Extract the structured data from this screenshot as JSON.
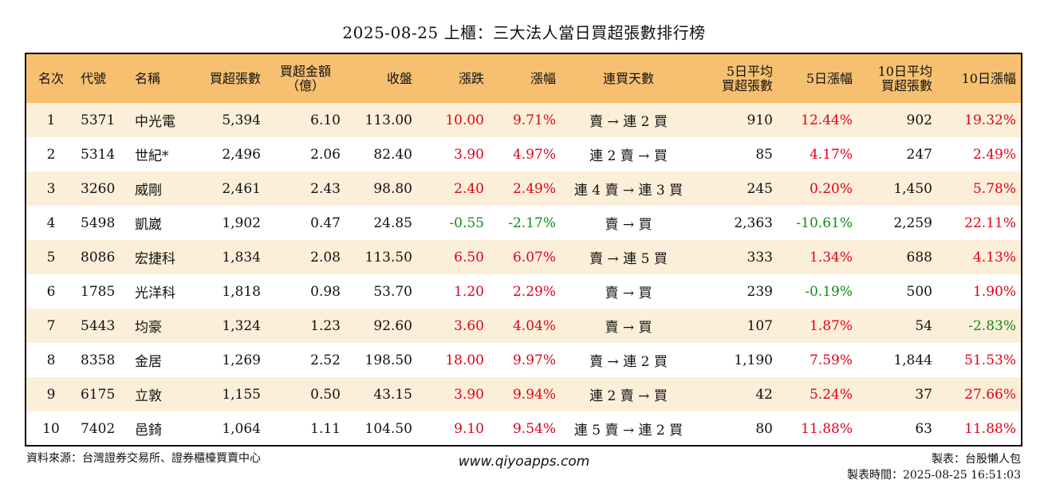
{
  "title": "2025-08-25 上櫃：三大法人當日買超張數排行榜",
  "columns": {
    "rank": "名次",
    "code": "代號",
    "name": "名稱",
    "buy_lots": "買超張數",
    "amount_l1": "買超金額",
    "amount_l2": "（億）",
    "close": "收盤",
    "change": "漲跌",
    "pct": "漲幅",
    "streak": "連買天數",
    "avg5_l1": "5日平均",
    "avg5_l2": "買超張數",
    "pct5": "5日漲幅",
    "avg10_l1": "10日平均",
    "avg10_l2": "買超張數",
    "pct10": "10日漲幅"
  },
  "rows": [
    {
      "rank": "1",
      "code": "5371",
      "name": "中光電",
      "buy_lots": "5,394",
      "amount": "6.10",
      "close": "113.00",
      "change": "10.00",
      "pct": "9.71%",
      "streak": "賣 → 連 2 買",
      "avg5": "910",
      "pct5": "12.44%",
      "avg10": "902",
      "pct10": "19.32%"
    },
    {
      "rank": "2",
      "code": "5314",
      "name": "世紀*",
      "buy_lots": "2,496",
      "amount": "2.06",
      "close": "82.40",
      "change": "3.90",
      "pct": "4.97%",
      "streak": "連 2 賣 → 買",
      "avg5": "85",
      "pct5": "4.17%",
      "avg10": "247",
      "pct10": "2.49%"
    },
    {
      "rank": "3",
      "code": "3260",
      "name": "威剛",
      "buy_lots": "2,461",
      "amount": "2.43",
      "close": "98.80",
      "change": "2.40",
      "pct": "2.49%",
      "streak": "連 4 賣 → 連 3 買",
      "avg5": "245",
      "pct5": "0.20%",
      "avg10": "1,450",
      "pct10": "5.78%"
    },
    {
      "rank": "4",
      "code": "5498",
      "name": "凱崴",
      "buy_lots": "1,902",
      "amount": "0.47",
      "close": "24.85",
      "change": "-0.55",
      "pct": "-2.17%",
      "streak": "賣 → 買",
      "avg5": "2,363",
      "pct5": "-10.61%",
      "avg10": "2,259",
      "pct10": "22.11%"
    },
    {
      "rank": "5",
      "code": "8086",
      "name": "宏捷科",
      "buy_lots": "1,834",
      "amount": "2.08",
      "close": "113.50",
      "change": "6.50",
      "pct": "6.07%",
      "streak": "賣 → 連 5 買",
      "avg5": "333",
      "pct5": "1.34%",
      "avg10": "688",
      "pct10": "4.13%"
    },
    {
      "rank": "6",
      "code": "1785",
      "name": "光洋科",
      "buy_lots": "1,818",
      "amount": "0.98",
      "close": "53.70",
      "change": "1.20",
      "pct": "2.29%",
      "streak": "賣 → 買",
      "avg5": "239",
      "pct5": "-0.19%",
      "avg10": "500",
      "pct10": "1.90%"
    },
    {
      "rank": "7",
      "code": "5443",
      "name": "均豪",
      "buy_lots": "1,324",
      "amount": "1.23",
      "close": "92.60",
      "change": "3.60",
      "pct": "4.04%",
      "streak": "賣 → 買",
      "avg5": "107",
      "pct5": "1.87%",
      "avg10": "54",
      "pct10": "-2.83%"
    },
    {
      "rank": "8",
      "code": "8358",
      "name": "金居",
      "buy_lots": "1,269",
      "amount": "2.52",
      "close": "198.50",
      "change": "18.00",
      "pct": "9.97%",
      "streak": "賣 → 連 2 買",
      "avg5": "1,190",
      "pct5": "7.59%",
      "avg10": "1,844",
      "pct10": "51.53%"
    },
    {
      "rank": "9",
      "code": "6175",
      "name": "立敦",
      "buy_lots": "1,155",
      "amount": "0.50",
      "close": "43.15",
      "change": "3.90",
      "pct": "9.94%",
      "streak": "連 2 賣 → 買",
      "avg5": "42",
      "pct5": "5.24%",
      "avg10": "37",
      "pct10": "27.66%"
    },
    {
      "rank": "10",
      "code": "7402",
      "name": "邑錡",
      "buy_lots": "1,064",
      "amount": "1.11",
      "close": "104.50",
      "change": "9.10",
      "pct": "9.54%",
      "streak": "連 5 賣 → 連 2 買",
      "avg5": "80",
      "pct5": "11.88%",
      "avg10": "63",
      "pct10": "11.88%"
    }
  ],
  "colors": {
    "header_bg": "#f7c070",
    "row_stripe": "#fcefd9",
    "positive": "#e0001b",
    "negative": "#138a13"
  },
  "footer": {
    "source": "資料來源：台灣證券交易所、證券櫃檯買賣中心",
    "website": "www.qiyoapps.com",
    "maker": "製表：台股懶人包",
    "made_time": "製表時間：2025-08-25 16:51:03"
  }
}
